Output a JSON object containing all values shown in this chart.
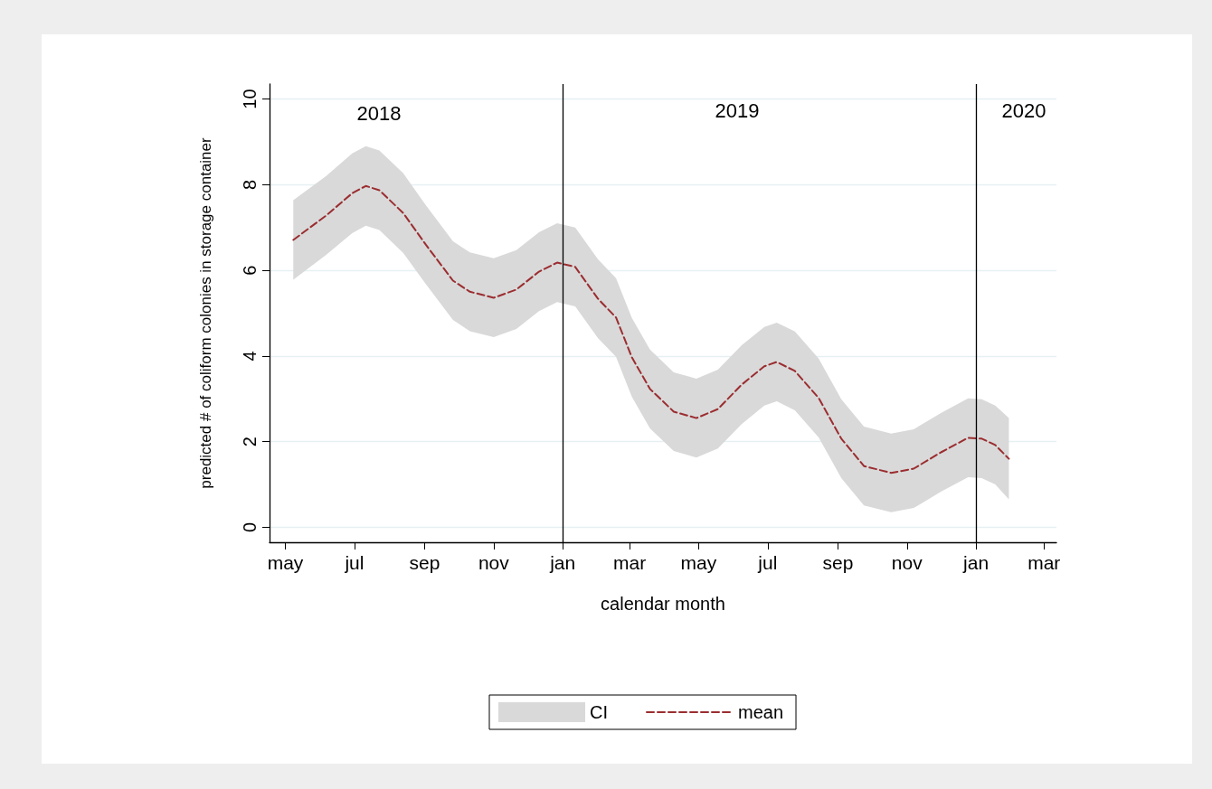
{
  "chart_data": {
    "type": "line",
    "xlabel": "calendar month",
    "ylabel": "predicted # of coliform colonies in storage container",
    "x": [
      "2018-05-08",
      "2018-06-06",
      "2018-06-29",
      "2018-07-11",
      "2018-07-23",
      "2018-08-13",
      "2018-09-02",
      "2018-09-26",
      "2018-10-11",
      "2018-11-01",
      "2018-11-21",
      "2018-12-11",
      "2018-12-27",
      "2019-01-12",
      "2019-02-01",
      "2019-02-17",
      "2019-03-03",
      "2019-03-19",
      "2019-04-09",
      "2019-04-29",
      "2019-05-18",
      "2019-06-08",
      "2019-06-28",
      "2019-07-09",
      "2019-07-25",
      "2019-08-15",
      "2019-09-04",
      "2019-09-24",
      "2019-10-18",
      "2019-11-07",
      "2019-12-01",
      "2019-12-25",
      "2020-01-06",
      "2020-01-18",
      "2020-01-30"
    ],
    "series": [
      {
        "name": "mean",
        "type": "line",
        "color": "#9b2d30",
        "line_style": "dashed",
        "values": [
          6.71,
          7.28,
          7.8,
          7.97,
          7.87,
          7.34,
          6.6,
          5.76,
          5.5,
          5.36,
          5.55,
          5.97,
          6.18,
          6.08,
          5.34,
          4.9,
          3.97,
          3.23,
          2.7,
          2.55,
          2.76,
          3.33,
          3.76,
          3.86,
          3.65,
          3.02,
          2.07,
          1.43,
          1.27,
          1.37,
          1.75,
          2.09,
          2.07,
          1.92,
          1.6
        ],
        "lower": [
          5.78,
          6.36,
          6.87,
          7.04,
          6.94,
          6.41,
          5.68,
          4.84,
          4.58,
          4.44,
          4.63,
          5.05,
          5.26,
          5.16,
          4.42,
          3.98,
          3.05,
          2.31,
          1.78,
          1.63,
          1.84,
          2.41,
          2.84,
          2.94,
          2.73,
          2.1,
          1.15,
          0.51,
          0.35,
          0.45,
          0.83,
          1.17,
          1.15,
          1.0,
          0.65
        ],
        "upper": [
          7.64,
          8.2,
          8.73,
          8.9,
          8.8,
          8.27,
          7.52,
          6.68,
          6.42,
          6.28,
          6.47,
          6.89,
          7.1,
          7.0,
          6.26,
          5.82,
          4.89,
          4.15,
          3.62,
          3.47,
          3.68,
          4.25,
          4.68,
          4.78,
          4.57,
          3.94,
          2.99,
          2.35,
          2.19,
          2.29,
          2.67,
          3.01,
          2.99,
          2.84,
          2.55
        ]
      }
    ],
    "xlim": [
      "2018-04-17",
      "2020-03-12"
    ],
    "xticks": [
      {
        "value": "2018-05",
        "label": "may"
      },
      {
        "value": "2018-07",
        "label": "jul"
      },
      {
        "value": "2018-09",
        "label": "sep"
      },
      {
        "value": "2018-11",
        "label": "nov"
      },
      {
        "value": "2019-01",
        "label": "jan"
      },
      {
        "value": "2019-03",
        "label": "mar"
      },
      {
        "value": "2019-05",
        "label": "may"
      },
      {
        "value": "2019-07",
        "label": "jul"
      },
      {
        "value": "2019-09",
        "label": "sep"
      },
      {
        "value": "2019-11",
        "label": "nov"
      },
      {
        "value": "2020-01",
        "label": "jan"
      },
      {
        "value": "2020-03",
        "label": "mar"
      }
    ],
    "ylim": [
      -0.35,
      10.35
    ],
    "yticks": [
      0,
      2,
      4,
      6,
      8,
      10
    ],
    "ref_lines": [
      {
        "axis": "x",
        "value": "2019-01-01",
        "color": "#000000"
      },
      {
        "axis": "x",
        "value": "2020-01-01",
        "color": "#000000"
      }
    ],
    "annotations": [
      "2018",
      "2019",
      "2020",
      "CI"
    ],
    "grid": "y",
    "legend": "bottom",
    "marker": "none"
  }
}
